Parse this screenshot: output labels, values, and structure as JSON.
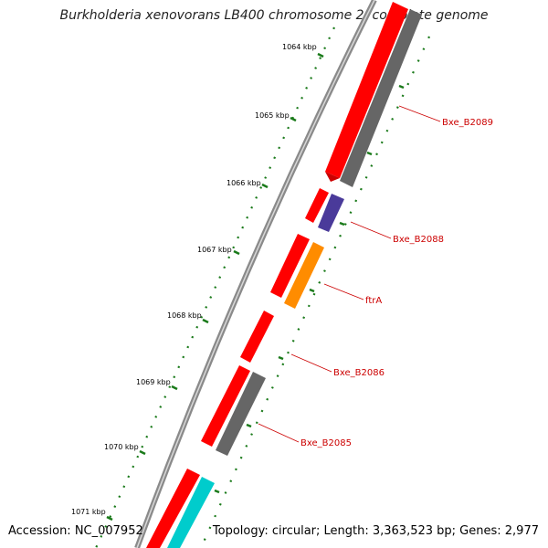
{
  "title": "Burkholderia xenovorans LB400 chromosome 2, complete genome",
  "footer": {
    "accession": "Accession: NC_007952",
    "summary": "Topology: circular; Length: 3,363,523 bp; Genes: 2,977"
  },
  "colors": {
    "backbone": "#808080",
    "forward_cds": "#ff0000",
    "reverse_cds": "#666666",
    "reverse_alt": "#4a3a9a",
    "ftrA": "#ff8c00",
    "cyan_cds": "#00cccc",
    "ticks": "#1a7a1a",
    "label": "#cc0000"
  },
  "ticks": [
    {
      "label": "1064 kbp",
      "kbp": 1064
    },
    {
      "label": "1065 kbp",
      "kbp": 1065
    },
    {
      "label": "1066 kbp",
      "kbp": 1066
    },
    {
      "label": "1067 kbp",
      "kbp": 1067
    },
    {
      "label": "1068 kbp",
      "kbp": 1068
    },
    {
      "label": "1069 kbp",
      "kbp": 1069
    },
    {
      "label": "1070 kbp",
      "kbp": 1070
    },
    {
      "label": "1071 kbp",
      "kbp": 1071
    }
  ],
  "gene_labels": [
    {
      "text": "Bxe_B2089"
    },
    {
      "text": "Bxe_B2088"
    },
    {
      "text": "ftrA"
    },
    {
      "text": "Bxe_B2086"
    },
    {
      "text": "Bxe_B2085"
    }
  ]
}
